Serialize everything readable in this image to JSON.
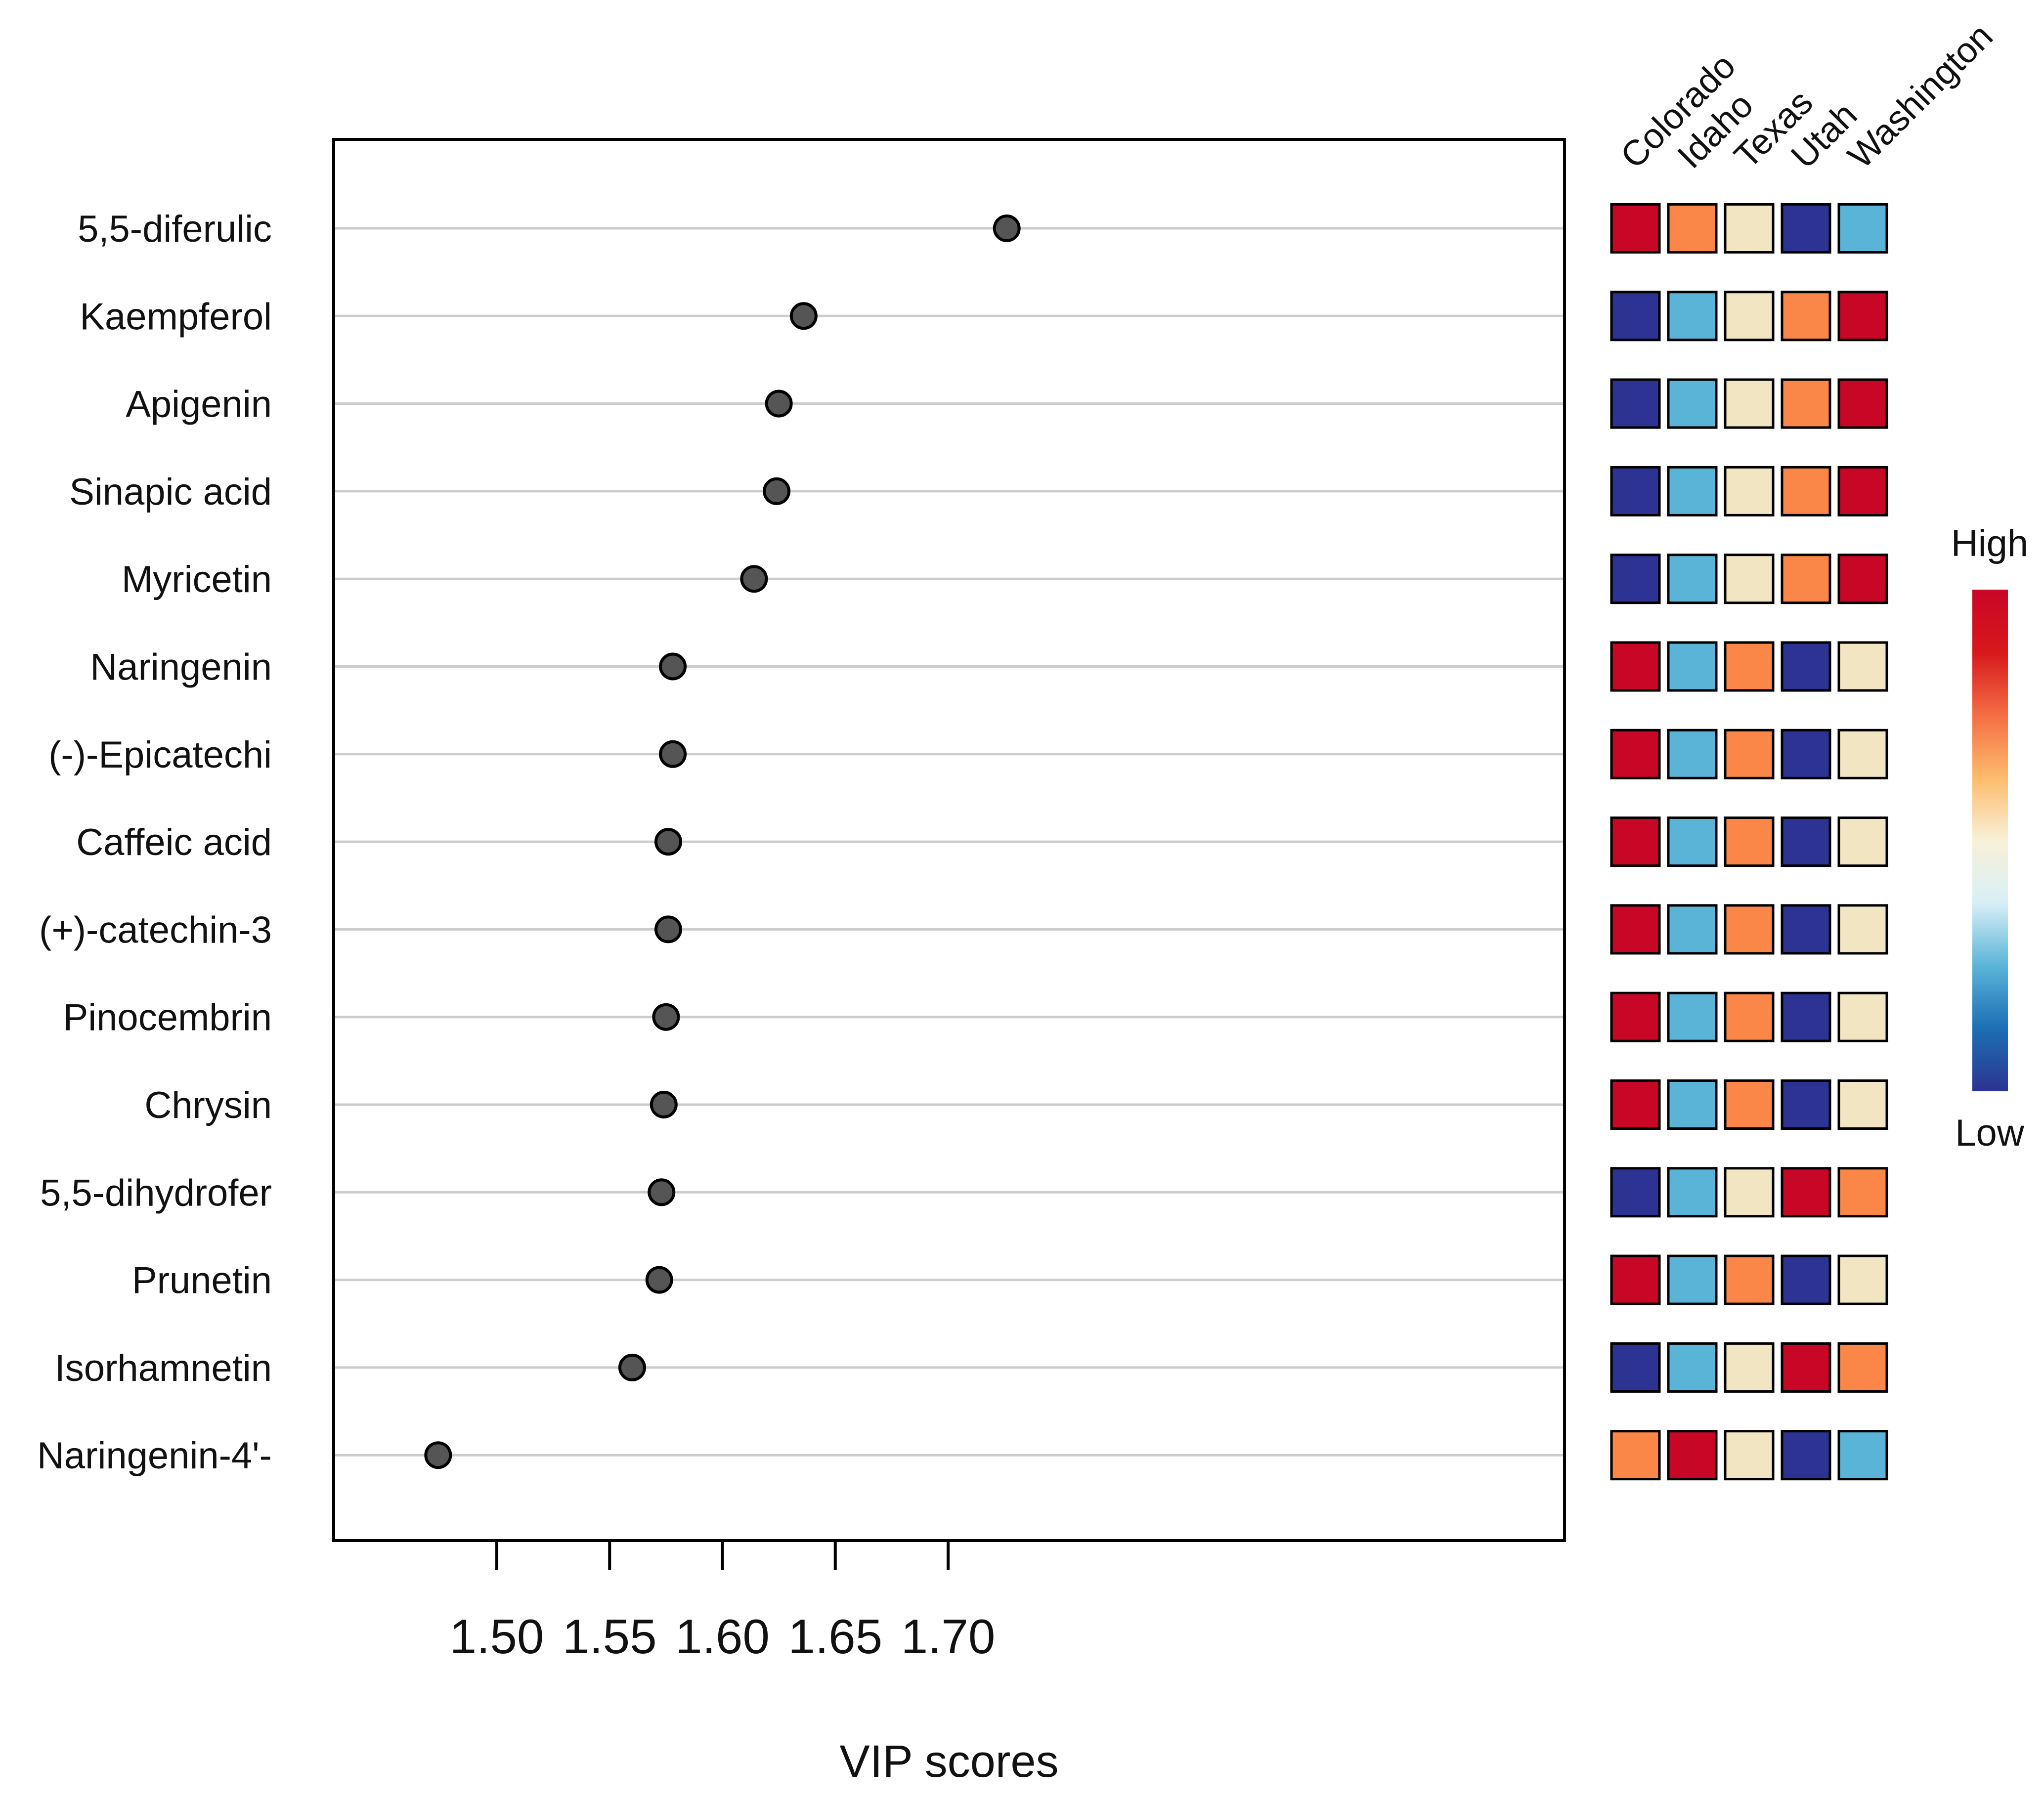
{
  "chart_data": {
    "type": "scatter",
    "xlabel": "VIP scores",
    "xticks": [
      "1.50",
      "1.55",
      "1.60",
      "1.65",
      "1.70"
    ],
    "xlim": [
      1.464,
      1.737
    ],
    "grid": "horizontal",
    "points": [
      {
        "compound": "5,5-diferulic",
        "vip": 1.726
      },
      {
        "compound": "Kaempferol",
        "vip": 1.636
      },
      {
        "compound": "Apigenin",
        "vip": 1.625
      },
      {
        "compound": "Sinapic acid",
        "vip": 1.624
      },
      {
        "compound": "Myricetin",
        "vip": 1.614
      },
      {
        "compound": "Naringenin",
        "vip": 1.578
      },
      {
        "compound": "(-)-Epicatechi",
        "vip": 1.578
      },
      {
        "compound": "Caffeic acid",
        "vip": 1.576
      },
      {
        "compound": "(+)-catechin-3",
        "vip": 1.576
      },
      {
        "compound": "Pinocembrin",
        "vip": 1.575
      },
      {
        "compound": "Chrysin",
        "vip": 1.574
      },
      {
        "compound": "5,5-dihydrofer",
        "vip": 1.573
      },
      {
        "compound": "Prunetin",
        "vip": 1.572
      },
      {
        "compound": "Isorhamnetin",
        "vip": 1.56
      },
      {
        "compound": "Naringenin-4'-",
        "vip": 1.474
      }
    ],
    "heatmap": {
      "columns": [
        "Colorado",
        "Idaho",
        "Texas",
        "Utah",
        "Washington"
      ],
      "levels": [
        [
          5,
          4,
          3,
          1,
          2
        ],
        [
          1,
          2,
          3,
          4,
          5
        ],
        [
          1,
          2,
          3,
          4,
          5
        ],
        [
          1,
          2,
          3,
          4,
          5
        ],
        [
          1,
          2,
          3,
          4,
          5
        ],
        [
          5,
          2,
          4,
          1,
          3
        ],
        [
          5,
          2,
          4,
          1,
          3
        ],
        [
          5,
          2,
          4,
          1,
          3
        ],
        [
          5,
          2,
          4,
          1,
          3
        ],
        [
          5,
          2,
          4,
          1,
          3
        ],
        [
          5,
          2,
          4,
          1,
          3
        ],
        [
          1,
          2,
          3,
          5,
          4
        ],
        [
          5,
          2,
          4,
          1,
          3
        ],
        [
          1,
          2,
          3,
          5,
          4
        ],
        [
          4,
          5,
          3,
          1,
          2
        ]
      ],
      "level_colors": {
        "1": "#2c3393",
        "2": "#5ab4d8",
        "3": "#f2e6c2",
        "4": "#fa8647",
        "5": "#c80626"
      }
    },
    "legend": {
      "high_label": "High",
      "low_label": "Low",
      "gradient": [
        "#2c3393",
        "#1c6fb4",
        "#5ab4d8",
        "#d8eff7",
        "#f8f1d8",
        "#fdbb6c",
        "#f46d43",
        "#d7191c",
        "#c80626"
      ],
      "placement": "right"
    },
    "colors": {
      "point_fill": "#555555",
      "point_stroke": "#000000",
      "gridline": "#cccccc",
      "frame": "#000000"
    }
  }
}
